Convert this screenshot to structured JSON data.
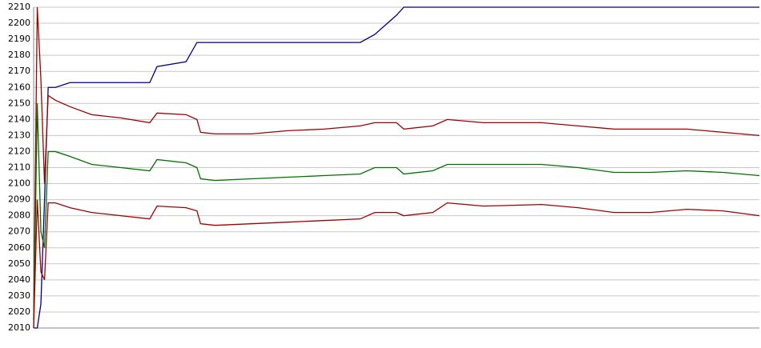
{
  "chart_data": {
    "type": "line",
    "x": [
      0,
      0.5,
      1,
      1.5,
      2,
      3,
      5,
      8,
      12,
      16,
      17,
      21,
      22.5,
      23,
      25,
      30,
      35,
      40,
      45,
      47,
      50,
      51,
      55,
      57,
      62,
      70,
      75,
      80,
      85,
      90,
      95,
      100
    ],
    "xlim": [
      0,
      100
    ],
    "ylim": [
      2010,
      2210
    ],
    "yticks": [
      2010,
      2020,
      2030,
      2040,
      2050,
      2060,
      2070,
      2080,
      2090,
      2100,
      2110,
      2120,
      2130,
      2140,
      2150,
      2160,
      2170,
      2180,
      2190,
      2200,
      2210
    ],
    "grid": true,
    "series": [
      {
        "color": "#000080",
        "values": [
          2010,
          2010,
          2025,
          2090,
          2160,
          2160,
          2163,
          2163,
          2163,
          2163,
          2173,
          2176,
          2188,
          2188,
          2188,
          2188,
          2188,
          2188,
          2188,
          2193,
          2205,
          2210,
          2210,
          2210,
          2210,
          2210,
          2210,
          2210,
          2210,
          2210,
          2210,
          2210
        ]
      },
      {
        "color": "#a00000",
        "values": [
          2015,
          2210,
          2165,
          2100,
          2155,
          2152,
          2148,
          2143,
          2141,
          2138,
          2144,
          2143,
          2140,
          2132,
          2131,
          2131,
          2133,
          2134,
          2136,
          2138,
          2138,
          2134,
          2136,
          2140,
          2138,
          2138,
          2136,
          2134,
          2134,
          2134,
          2132,
          2130
        ]
      },
      {
        "color": "#007000",
        "values": [
          2010,
          2150,
          2070,
          2060,
          2120,
          2120,
          2117,
          2112,
          2110,
          2108,
          2115,
          2113,
          2110,
          2103,
          2102,
          2103,
          2104,
          2105,
          2106,
          2110,
          2110,
          2106,
          2108,
          2112,
          2112,
          2112,
          2110,
          2107,
          2107,
          2108,
          2107,
          2105
        ]
      },
      {
        "color": "#a00000",
        "values": [
          2010,
          2090,
          2045,
          2040,
          2088,
          2088,
          2085,
          2082,
          2080,
          2078,
          2086,
          2085,
          2083,
          2075,
          2074,
          2075,
          2076,
          2077,
          2078,
          2082,
          2082,
          2080,
          2082,
          2088,
          2086,
          2087,
          2085,
          2082,
          2082,
          2084,
          2083,
          2080
        ]
      }
    ]
  }
}
